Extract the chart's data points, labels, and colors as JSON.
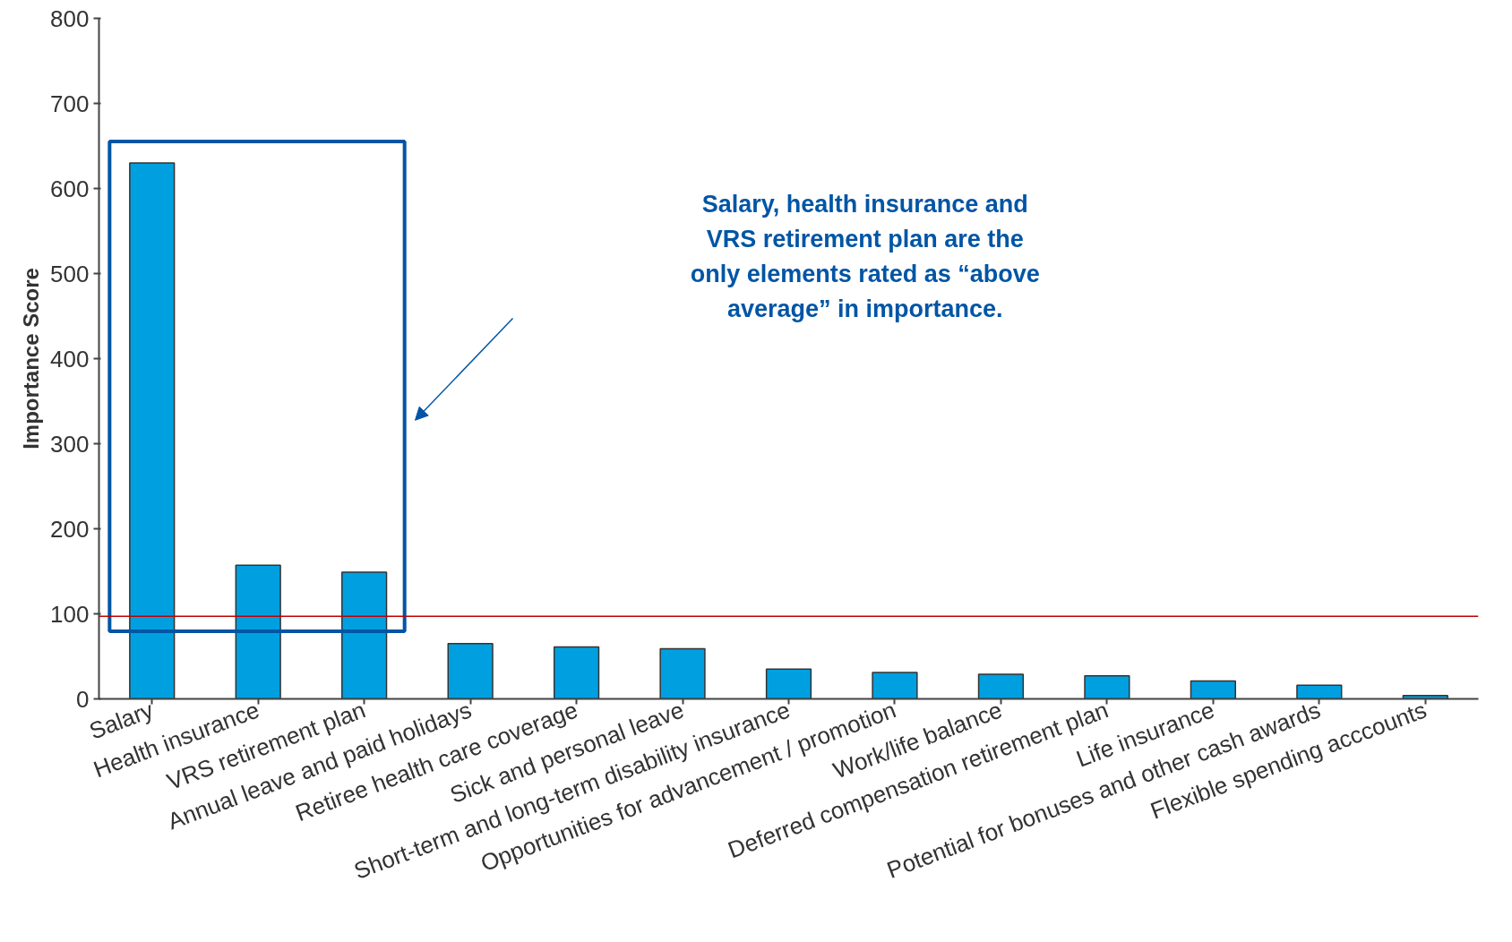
{
  "chart_data": {
    "type": "bar",
    "ylabel": "Importance Score",
    "categories": [
      "Salary",
      "Health insurance",
      "VRS retirement plan",
      "Annual leave and paid holidays",
      "Retiree health care coverage",
      "Sick and personal leave",
      "Short-term and long-term disability insurance",
      "Opportunities for advancement / promotion",
      "Work/life balance",
      "Deferred compensation retirement plan",
      "Life insurance",
      "Potential for bonuses and other cash awards",
      "Flexible spending acccounts"
    ],
    "values": [
      630,
      157,
      149,
      65,
      61,
      59,
      35,
      31,
      29,
      27,
      21,
      16,
      4
    ],
    "color": "#00a0e0",
    "ylim": [
      0,
      800
    ],
    "yticks": [
      0,
      100,
      200,
      300,
      400,
      500,
      600,
      700,
      800
    ],
    "grid": false,
    "ref_lines": [
      {
        "axis": "y",
        "value": 97,
        "color": "#c00000"
      }
    ],
    "annotations": [
      "Salary, health insurance and VRS retirement plan are the only elements rated as “above average” in importance."
    ]
  }
}
